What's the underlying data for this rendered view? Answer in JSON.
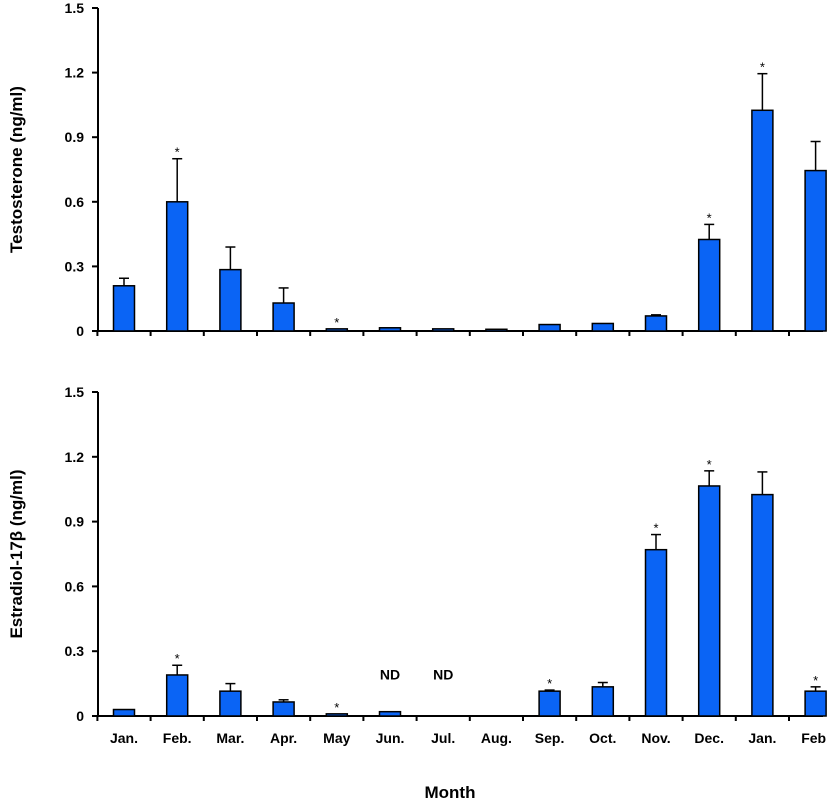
{
  "xlabel": "Month",
  "colors": {
    "bar": "#0a64f5",
    "outline": "#000000"
  },
  "chart_data": [
    {
      "type": "bar",
      "ylabel": "Testosterone  (ng/ml)",
      "ylim": [
        0,
        1.5
      ],
      "yticks": [
        "0",
        "0.3",
        "0.6",
        "0.9",
        "1.2",
        "1.5"
      ],
      "categories": [
        "Jan.",
        "Feb.",
        "Mar.",
        "Apr.",
        "May",
        "Jun.",
        "Jul.",
        "Aug.",
        "Sep.",
        "Oct.",
        "Nov.",
        "Dec.",
        "Jan.",
        "Feb."
      ],
      "values": [
        0.21,
        0.6,
        0.285,
        0.13,
        0.01,
        0.015,
        0.01,
        0.008,
        0.03,
        0.035,
        0.07,
        0.425,
        1.025,
        0.745
      ],
      "errors": [
        0.035,
        0.2,
        0.105,
        0.07,
        0,
        0,
        0,
        0,
        0,
        0,
        0.005,
        0.07,
        0.17,
        0.135
      ],
      "annotations": [
        "",
        "*",
        "",
        "",
        "*",
        "",
        "",
        "",
        "",
        "",
        "",
        "*",
        "*",
        ""
      ],
      "show_xtick_labels": false
    },
    {
      "type": "bar",
      "ylabel": "Estradiol-17β  (ng/ml)",
      "ylim": [
        0,
        1.5
      ],
      "yticks": [
        "0",
        "0.3",
        "0.6",
        "0.9",
        "1.2",
        "1.5"
      ],
      "categories": [
        "Jan.",
        "Feb.",
        "Mar.",
        "Apr.",
        "May",
        "Jun.",
        "Jul.",
        "Aug.",
        "Sep.",
        "Oct.",
        "Nov.",
        "Dec.",
        "Jan.",
        "Feb."
      ],
      "values": [
        0.03,
        0.19,
        0.115,
        0.065,
        0.01,
        0.02,
        null,
        null,
        0.115,
        0.135,
        0.77,
        1.065,
        1.025,
        0.115
      ],
      "errors": [
        0,
        0.045,
        0.035,
        0.01,
        0,
        0,
        0,
        0,
        0.005,
        0.02,
        0.07,
        0.07,
        0.105,
        0.02
      ],
      "annotations": [
        "",
        "*",
        "",
        "",
        "*",
        "ND",
        "ND",
        "",
        "*",
        "",
        "*",
        "*",
        "",
        "*"
      ],
      "show_xtick_labels": true
    }
  ]
}
